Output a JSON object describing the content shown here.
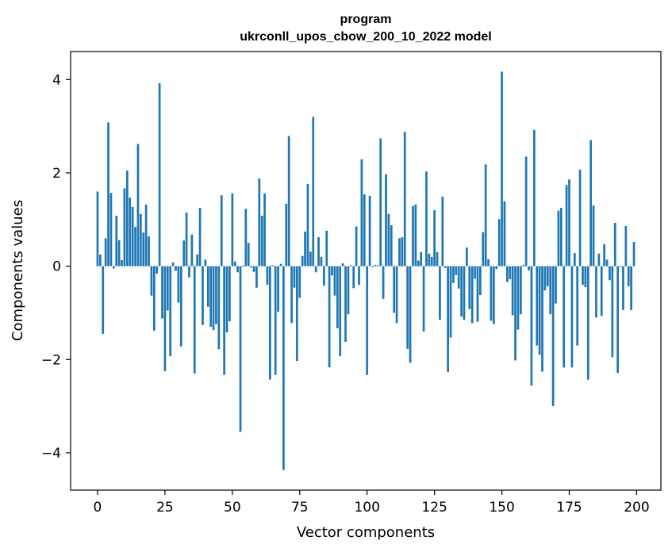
{
  "chart_data": {
    "type": "bar",
    "title": "program",
    "subtitle": "ukrconll_upos_cbow_200_10_2022 model",
    "xlabel": "Vector components",
    "ylabel": "Components values",
    "xlim": [
      -10,
      209
    ],
    "ylim": [
      -4.8,
      4.6
    ],
    "xticks": [
      0,
      25,
      50,
      75,
      100,
      125,
      150,
      175,
      200
    ],
    "xtick_labels": [
      "0",
      "25",
      "50",
      "75",
      "100",
      "125",
      "150",
      "175",
      "200"
    ],
    "yticks": [
      -4,
      -2,
      0,
      2,
      4
    ],
    "ytick_labels": [
      "−4",
      "−2",
      "0",
      "2",
      "4"
    ],
    "grid": false,
    "bar_color": "#1f77b4",
    "x": [
      0,
      1,
      2,
      3,
      4,
      5,
      6,
      7,
      8,
      9,
      10,
      11,
      12,
      13,
      14,
      15,
      16,
      17,
      18,
      19,
      20,
      21,
      22,
      23,
      24,
      25,
      26,
      27,
      28,
      29,
      30,
      31,
      32,
      33,
      34,
      35,
      36,
      37,
      38,
      39,
      40,
      41,
      42,
      43,
      44,
      45,
      46,
      47,
      48,
      49,
      50,
      51,
      52,
      53,
      54,
      55,
      56,
      57,
      58,
      59,
      60,
      61,
      62,
      63,
      64,
      65,
      66,
      67,
      68,
      69,
      70,
      71,
      72,
      73,
      74,
      75,
      76,
      77,
      78,
      79,
      80,
      81,
      82,
      83,
      84,
      85,
      86,
      87,
      88,
      89,
      90,
      91,
      92,
      93,
      94,
      95,
      96,
      97,
      98,
      99,
      100,
      101,
      102,
      103,
      104,
      105,
      106,
      107,
      108,
      109,
      110,
      111,
      112,
      113,
      114,
      115,
      116,
      117,
      118,
      119,
      120,
      121,
      122,
      123,
      124,
      125,
      126,
      127,
      128,
      129,
      130,
      131,
      132,
      133,
      134,
      135,
      136,
      137,
      138,
      139,
      140,
      141,
      142,
      143,
      144,
      145,
      146,
      147,
      148,
      149,
      150,
      151,
      152,
      153,
      154,
      155,
      156,
      157,
      158,
      159,
      160,
      161,
      162,
      163,
      164,
      165,
      166,
      167,
      168,
      169,
      170,
      171,
      172,
      173,
      174,
      175,
      176,
      177,
      178,
      179,
      180,
      181,
      182,
      183,
      184,
      185,
      186,
      187,
      188,
      189,
      190,
      191,
      192,
      193,
      194,
      195,
      196,
      197,
      198,
      199
    ],
    "values": [
      1.6,
      0.25,
      -1.45,
      0.6,
      3.08,
      1.57,
      -0.05,
      1.08,
      0.56,
      0.13,
      1.67,
      2.05,
      1.47,
      1.27,
      0.84,
      2.62,
      1.12,
      0.72,
      1.32,
      0.64,
      -0.63,
      -1.38,
      -0.16,
      3.92,
      -1.12,
      -2.25,
      -0.95,
      -1.93,
      0.08,
      -0.1,
      -0.78,
      -1.72,
      0.55,
      1.15,
      -0.24,
      0.68,
      -2.3,
      0.25,
      1.25,
      -1.26,
      0.14,
      -0.87,
      -1.3,
      -1.37,
      -1.24,
      -1.78,
      1.52,
      -2.33,
      -1.42,
      -1.18,
      1.56,
      0.1,
      -0.13,
      -3.55,
      0.02,
      1.23,
      0.5,
      -0.03,
      -0.12,
      -0.46,
      1.88,
      1.08,
      1.56,
      -0.4,
      -2.43,
      0.02,
      -2.33,
      -0.98,
      0.05,
      -4.37,
      1.34,
      2.79,
      -1.22,
      -0.46,
      -2.03,
      -0.68,
      0.22,
      0.74,
      1.76,
      0.31,
      3.2,
      -0.13,
      0.62,
      0.2,
      -0.42,
      0.76,
      -2.17,
      -0.2,
      -0.63,
      -1.33,
      -1.93,
      0.06,
      -1.62,
      -1.03,
      0.02,
      -0.47,
      0.85,
      -0.4,
      2.29,
      1.54,
      -2.33,
      1.51,
      -0.02,
      0.03,
      0.02,
      2.74,
      -0.7,
      1.97,
      1.12,
      0.88,
      -1.0,
      -1.22,
      0.6,
      0.62,
      2.88,
      -1.77,
      -2.07,
      1.29,
      1.32,
      0.12,
      0.3,
      -1.4,
      2.03,
      0.27,
      0.2,
      1.2,
      0.3,
      -1.15,
      1.49,
      -0.04,
      -2.27,
      -1.53,
      -0.36,
      -0.19,
      -0.48,
      -1.08,
      -1.15,
      0.4,
      -0.92,
      -1.22,
      -0.27,
      -1.19,
      -0.62,
      0.73,
      2.18,
      0.15,
      -1.17,
      -1.24,
      -0.06,
      1.01,
      4.17,
      1.39,
      -0.34,
      -0.28,
      -1.05,
      -2.02,
      -1.36,
      -1.03,
      0.03,
      2.35,
      -0.09,
      -2.56,
      2.92,
      -1.7,
      -1.9,
      -2.26,
      -0.52,
      -0.43,
      -1.03,
      -3.0,
      -0.8,
      1.19,
      1.25,
      -2.17,
      1.74,
      1.86,
      -2.17,
      0.28,
      -1.7,
      2.07,
      -0.4,
      -0.45,
      -2.43,
      2.7,
      1.3,
      -1.1,
      0.27,
      -1.07,
      0.47,
      0.14,
      -0.3,
      -1.95,
      0.93,
      -2.29,
      -0.02,
      -0.94,
      0.86,
      -0.43,
      -0.94,
      0.52
    ]
  }
}
